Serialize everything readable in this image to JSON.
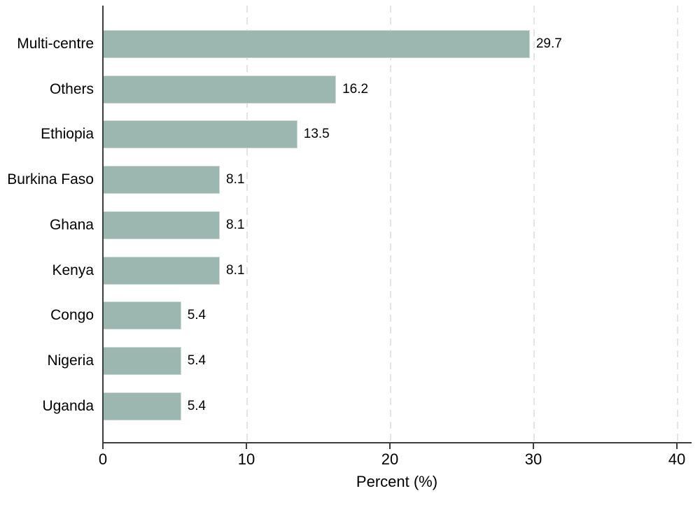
{
  "chart_data": {
    "type": "bar",
    "orientation": "horizontal",
    "title": "",
    "xlabel": "Percent (%)",
    "ylabel": "",
    "categories": [
      "Multi-centre",
      "Others",
      "Ethiopia",
      "Burkina Faso",
      "Ghana",
      "Kenya",
      "Congo",
      "Nigeria",
      "Uganda"
    ],
    "values": [
      29.7,
      16.2,
      13.5,
      8.1,
      8.1,
      8.1,
      5.4,
      5.4,
      5.4
    ],
    "value_label_decimals": 1,
    "xlim": [
      0,
      41
    ],
    "xticks": [
      0,
      10,
      20,
      30,
      40
    ],
    "grid": "vertical-dashed",
    "legend": "none",
    "bar_color": "#9bb7af",
    "bar_edge_color": "#ccdcd6",
    "axis_color": "#3d3d3d",
    "gridline_color": "#e4e4e4",
    "text_color": "#000000",
    "background": "#ffffff"
  }
}
